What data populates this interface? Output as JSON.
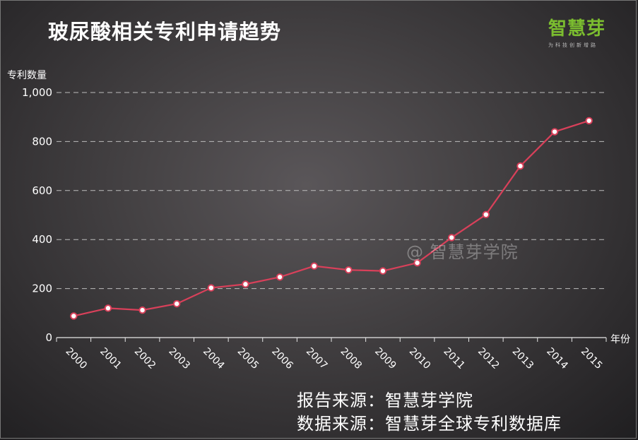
{
  "title": "玻尿酸相关专利申请趋势",
  "logo": {
    "text": "智慧芽",
    "slogan": "为科技创新增路"
  },
  "watermark": "@ 智慧芽学院",
  "sources": {
    "report": "报告来源：智慧芽学院",
    "data": "数据来源：智慧芽全球专利数据库"
  },
  "colors": {
    "line": "#d9405a",
    "marker_fill": "#ffffff",
    "grid": "#bdbdbd",
    "logo": "#7bbd2f"
  },
  "chart_data": {
    "type": "line",
    "title": "玻尿酸相关专利申请趋势",
    "xlabel": "年份",
    "ylabel": "专利数量",
    "categories": [
      "2000",
      "2001",
      "2002",
      "2003",
      "2004",
      "2005",
      "2006",
      "2007",
      "2008",
      "2009",
      "2010",
      "2011",
      "2012",
      "2013",
      "2014",
      "2015"
    ],
    "values": [
      88,
      120,
      112,
      138,
      203,
      218,
      247,
      292,
      276,
      272,
      305,
      408,
      502,
      700,
      840,
      885
    ],
    "ylim": [
      0,
      1000
    ],
    "yticks": [
      0,
      200,
      400,
      600,
      800,
      1000
    ],
    "ytick_labels": [
      "0",
      "200",
      "400",
      "600",
      "800",
      "1,000"
    ],
    "grid": true,
    "grid_style": "dashed-horizontal",
    "legend": "none"
  }
}
